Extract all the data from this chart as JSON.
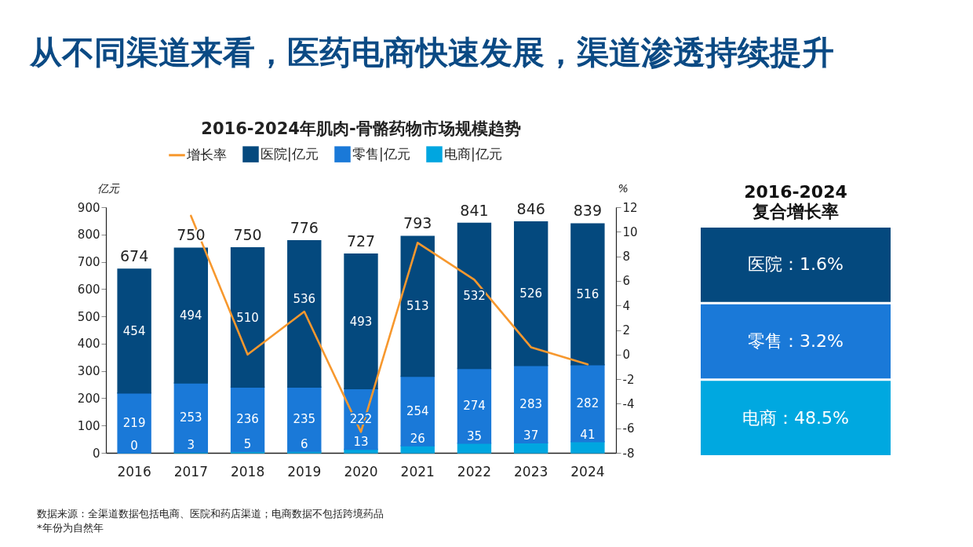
{
  "chart_data": [
    {
      "type": "bar",
      "title": "从不同渠道来看，医药电商快速发展，渠道渗透持续提升",
      "subtitle": "2016-2024年肌肉-骨骼药物市场规模趋势",
      "ylabel": "亿元",
      "y2label": "%",
      "categories": [
        "2016",
        "2017",
        "2018",
        "2019",
        "2020",
        "2021",
        "2022",
        "2023",
        "2024"
      ],
      "stacked": true,
      "series": [
        {
          "name": "电商|亿元",
          "color": "#00a6e0",
          "values": [
            0,
            3,
            5,
            6,
            13,
            26,
            35,
            37,
            41
          ],
          "value_labels": [
            "0",
            "3",
            "5",
            "6",
            "13",
            "26",
            "35",
            "37",
            "41"
          ]
        },
        {
          "name": "零售|亿元",
          "color": "#1a79d8",
          "values": [
            219,
            253,
            236,
            235,
            222,
            254,
            274,
            283,
            282
          ],
          "value_labels": [
            "219",
            "253",
            "236",
            "235",
            "222",
            "254",
            "274",
            "283",
            "282"
          ]
        },
        {
          "name": "医院|亿元",
          "color": "#04497e",
          "values": [
            454,
            494,
            510,
            536,
            493,
            513,
            532,
            526,
            516
          ],
          "value_labels": [
            "454",
            "494",
            "510",
            "536",
            "493",
            "513",
            "532",
            "526",
            "516"
          ]
        },
        {
          "name": "增长率",
          "type": "line",
          "axis": "y2",
          "color": "#f7982e",
          "values": [
            null,
            11.3,
            0,
            3.5,
            -6.3,
            9.1,
            6.1,
            0.6,
            -0.8
          ]
        }
      ],
      "totals": [
        "674",
        "750",
        "750",
        "776",
        "727",
        "793",
        "841",
        "846",
        "839"
      ],
      "ylim": [
        0,
        900
      ],
      "yticks": [
        0,
        100,
        200,
        300,
        400,
        500,
        600,
        700,
        800,
        900
      ],
      "y2lim": [
        -8,
        12
      ],
      "y2ticks": [
        -8,
        -6,
        -4,
        -2,
        0,
        2,
        4,
        6,
        8,
        10,
        12
      ],
      "legend": "top",
      "annotations": [
        "数据来源：全渠道数据包括电商、医院和药店渠道；电商数据不包括跨境药品",
        "*年份为自然年"
      ]
    },
    {
      "type": "other",
      "title": "2016-2024",
      "subtitle": "复合增长率",
      "annotations": [
        "医院：1.6%",
        "零售：3.2%",
        "电商：48.5%"
      ],
      "colors": [
        "#04497e",
        "#1a79d8",
        "#00a8e0"
      ]
    }
  ]
}
